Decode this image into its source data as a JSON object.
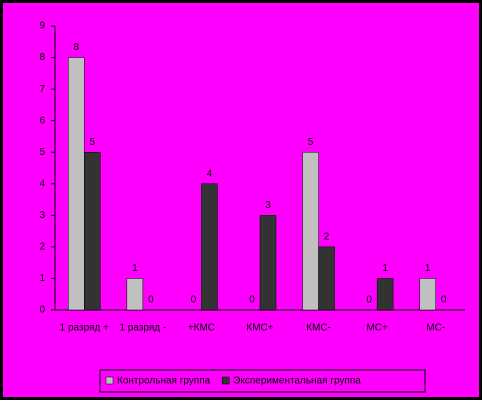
{
  "chart_data": {
    "type": "bar",
    "categories": [
      "1 разряд +",
      "1 разряд -",
      "+КМС",
      "КМС+",
      "КМС-",
      "МС+",
      "МС-"
    ],
    "series": [
      {
        "name": "Контрольная группа",
        "color": "#c0c0c0",
        "values": [
          8,
          1,
          0,
          0,
          5,
          0,
          1
        ]
      },
      {
        "name": "Экспериментальная группа",
        "color": "#333333",
        "values": [
          5,
          0,
          4,
          3,
          2,
          1,
          0
        ]
      }
    ],
    "ylim": [
      0,
      9
    ],
    "yticks": [
      0,
      1,
      2,
      3,
      4,
      5,
      6,
      7,
      8,
      9
    ],
    "grid": false,
    "legend": "bottom"
  }
}
